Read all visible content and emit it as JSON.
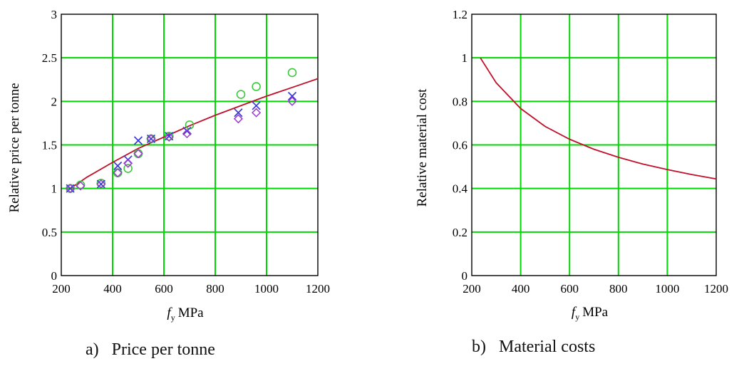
{
  "colors": {
    "grid": "#00d800",
    "curve": "#c0102a",
    "circle_marker": "#3cc83c",
    "cross_marker": "#3a3ad8",
    "diamond_marker": "#9a3ad0"
  },
  "chart_data": [
    {
      "type": "scatter",
      "panel_caption": "a)   Price per tonne",
      "ylabel": "Relative price per tonne",
      "xlabel_main": "f",
      "xlabel_sub": "y",
      "xlabel_unit": "MPa",
      "xlim": [
        200,
        1200
      ],
      "ylim": [
        0,
        3
      ],
      "x_ticks": [
        "200",
        "400",
        "600",
        "800",
        "1000",
        "1200"
      ],
      "y_ticks": [
        "0",
        "0.5",
        "1",
        "1.5",
        "2",
        "2.5",
        "3"
      ],
      "grid": true,
      "series": [
        {
          "marker": "line",
          "x": [
            235,
            300,
            400,
            500,
            600,
            700,
            800,
            900,
            1000,
            1100,
            1200
          ],
          "y": [
            1.0,
            1.13,
            1.3,
            1.46,
            1.59,
            1.72,
            1.84,
            1.95,
            2.06,
            2.16,
            2.26
          ]
        },
        {
          "marker": "circle",
          "x": [
            235,
            275,
            355,
            420,
            460,
            500,
            550,
            620,
            700,
            900,
            960,
            1100
          ],
          "y": [
            1.0,
            1.04,
            1.06,
            1.18,
            1.23,
            1.4,
            1.57,
            1.6,
            1.73,
            2.08,
            2.17,
            2.33
          ]
        },
        {
          "marker": "cross",
          "x": [
            235,
            355,
            420,
            460,
            500,
            550,
            620,
            690,
            890,
            960,
            1100
          ],
          "y": [
            1.0,
            1.05,
            1.26,
            1.33,
            1.55,
            1.57,
            1.6,
            1.66,
            1.87,
            1.95,
            2.06
          ]
        },
        {
          "marker": "diamond",
          "x": [
            235,
            275,
            355,
            420,
            460,
            500,
            550,
            620,
            690,
            890,
            960,
            1100
          ],
          "y": [
            1.0,
            1.03,
            1.05,
            1.18,
            1.29,
            1.4,
            1.57,
            1.59,
            1.63,
            1.8,
            1.87,
            2.0
          ]
        }
      ]
    },
    {
      "type": "line",
      "panel_caption": "b)   Material costs",
      "ylabel": "Relative material cost",
      "xlabel_main": "f",
      "xlabel_sub": "y",
      "xlabel_unit": "MPa",
      "xlim": [
        200,
        1200
      ],
      "ylim": [
        0,
        1.2
      ],
      "x_ticks": [
        "200",
        "400",
        "600",
        "800",
        "1000",
        "1200"
      ],
      "y_ticks": [
        "0",
        "0.2",
        "0.4",
        "0.6",
        "0.8",
        "1",
        "1.2"
      ],
      "grid": true,
      "series": [
        {
          "marker": "line",
          "x": [
            235,
            300,
            400,
            500,
            600,
            700,
            800,
            900,
            1000,
            1100,
            1200
          ],
          "y": [
            1.0,
            0.885,
            0.767,
            0.685,
            0.626,
            0.58,
            0.543,
            0.512,
            0.487,
            0.464,
            0.444
          ]
        }
      ]
    }
  ]
}
